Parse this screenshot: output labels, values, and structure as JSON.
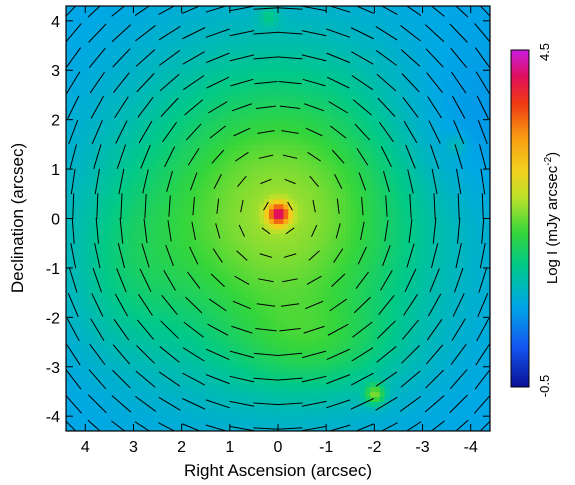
{
  "chart_data": {
    "type": "heatmap",
    "title": "",
    "xlabel": "Right Ascension (arcsec)",
    "ylabel": "Declination (arcsec)",
    "xlim": [
      4.4,
      -4.4
    ],
    "ylim": [
      -4.3,
      4.3
    ],
    "x_ticks": [
      4,
      3,
      2,
      1,
      0,
      -1,
      -2,
      -3,
      -4
    ],
    "y_ticks": [
      4,
      3,
      2,
      1,
      0,
      -1,
      -2,
      -3,
      -4
    ],
    "x_tick_labels": [
      "4",
      "3",
      "2",
      "1",
      "0",
      "-1",
      "-2",
      "-3",
      "-4"
    ],
    "y_tick_labels": [
      "4",
      "3",
      "2",
      "1",
      "0",
      "-1",
      "-2",
      "-3",
      "-4"
    ],
    "colorbar": {
      "label": "Log I (mJy arcsec",
      "label_superscript": "-2",
      "label_close": ")",
      "min": -0.5,
      "max": 4.5,
      "min_label": "-0.5",
      "max_label": "4.5"
    },
    "intensity_peak": {
      "x": 0.0,
      "y": 0.1,
      "log_intensity": 4.2
    },
    "compact_sources": [
      {
        "x": 0.2,
        "y": 4.1,
        "log_intensity": 1.4
      },
      {
        "x": -2.0,
        "y": -3.55,
        "log_intensity": 2.1
      },
      {
        "x": -3.7,
        "y": 1.5,
        "log_intensity": 1.3
      }
    ],
    "polarization_vectors": "centro-symmetric pattern about the nucleus, one vector per 0.5 arcsec grid cell"
  }
}
